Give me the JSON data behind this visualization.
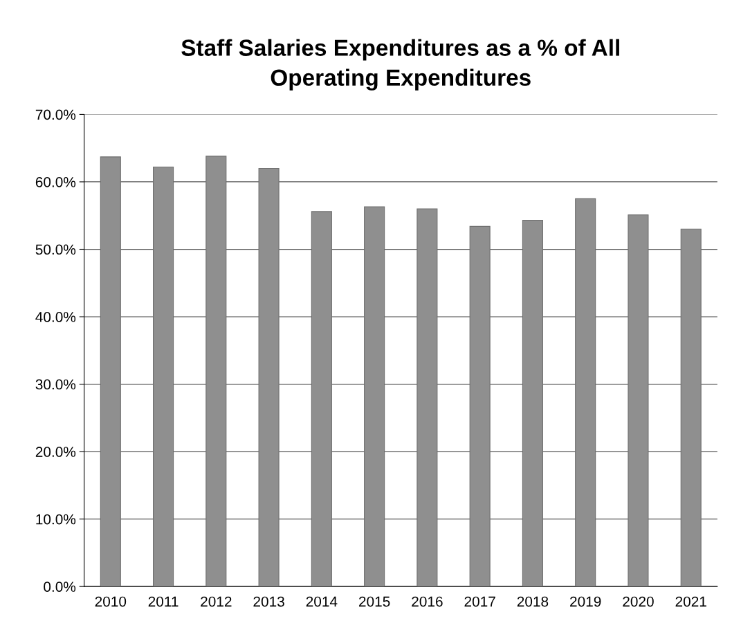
{
  "chart_data": {
    "type": "bar",
    "title": "Staff Salaries Expenditures as a % of All\nOperating Expenditures",
    "categories": [
      "2010",
      "2011",
      "2012",
      "2013",
      "2014",
      "2015",
      "2016",
      "2017",
      "2018",
      "2019",
      "2020",
      "2021"
    ],
    "values": [
      63.7,
      62.2,
      63.8,
      62.0,
      55.6,
      56.3,
      56.0,
      53.4,
      54.3,
      57.5,
      55.1,
      53.0
    ],
    "color": "#8f8f8f",
    "ylim": [
      0,
      70
    ],
    "yticks": [
      {
        "value": 0,
        "label": "0.0%"
      },
      {
        "value": 10,
        "label": "10.0%"
      },
      {
        "value": 20,
        "label": "20.0%"
      },
      {
        "value": 30,
        "label": "30.0%"
      },
      {
        "value": 40,
        "label": "40.0%"
      },
      {
        "value": 50,
        "label": "50.0%"
      },
      {
        "value": 60,
        "label": "60.0%"
      },
      {
        "value": 70,
        "label": "70.0%"
      }
    ],
    "grid": "y",
    "legend": false
  }
}
